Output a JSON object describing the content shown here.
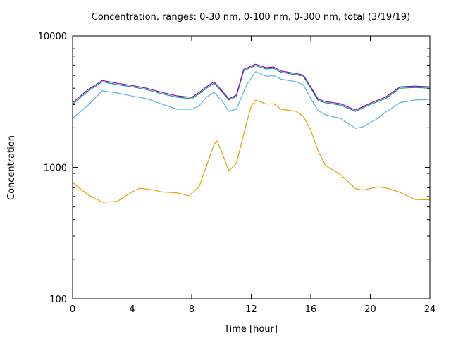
{
  "chart_data": {
    "type": "line",
    "title": "Concentration, ranges: 0-30 nm, 0-100 nm, 0-300 nm, total (3/19/19)",
    "xlabel": "Time [hour]",
    "ylabel": "Concentration",
    "xlim": [
      0,
      24
    ],
    "ylim": [
      100,
      10000
    ],
    "yscale": "log",
    "xticks": [
      0,
      4,
      8,
      12,
      16,
      20,
      24
    ],
    "xtick_labels": [
      "0",
      "4",
      "8",
      "12",
      "16",
      "20",
      "24"
    ],
    "yticks": [
      100,
      1000,
      10000
    ],
    "ytick_labels": [
      "100",
      "1000",
      "10000"
    ],
    "grid": false,
    "series": [
      {
        "name": "0-30 nm",
        "color": "#e69f00",
        "x": [
          0,
          1,
          2,
          3,
          4,
          4.5,
          5.5,
          6,
          7,
          7.8,
          8.5,
          9,
          9.5,
          9.7,
          10,
          10.5,
          11,
          11.5,
          12,
          12.3,
          13,
          13.5,
          14,
          15,
          15.5,
          16,
          16.5,
          17,
          18,
          19,
          19.5,
          20.5,
          21,
          22,
          23,
          24
        ],
        "y": [
          767,
          622,
          543,
          550,
          650,
          695,
          670,
          650,
          640,
          608,
          710,
          1030,
          1490,
          1590,
          1320,
          944,
          1070,
          1800,
          2930,
          3250,
          3030,
          3050,
          2770,
          2670,
          2450,
          1920,
          1320,
          1030,
          880,
          690,
          670,
          710,
          700,
          645,
          570,
          565
        ]
      },
      {
        "name": "0-100 nm",
        "color": "#56b4e9",
        "x": [
          0,
          1,
          2,
          3,
          4,
          5,
          6,
          7,
          8,
          8.5,
          9,
          9.5,
          10,
          10.5,
          11,
          11.7,
          12.3,
          13,
          13.5,
          14,
          15,
          15.5,
          16,
          16.5,
          17,
          18,
          19,
          19.5,
          20.5,
          21,
          22,
          23,
          24
        ],
        "y": [
          2360,
          2940,
          3820,
          3680,
          3490,
          3330,
          3030,
          2770,
          2770,
          2940,
          3420,
          3720,
          3250,
          2670,
          2770,
          4260,
          5350,
          4930,
          4990,
          4690,
          4480,
          4260,
          3330,
          2700,
          2510,
          2360,
          1980,
          2030,
          2360,
          2620,
          3110,
          3250,
          3290
        ]
      },
      {
        "name": "0-300 nm",
        "color": "#009e73",
        "x": [
          0,
          1,
          2,
          3,
          4,
          5,
          6,
          7,
          8,
          8.5,
          9,
          9.5,
          10,
          10.5,
          11,
          11.5,
          12.3,
          13,
          13.5,
          14,
          15,
          15.5,
          16,
          16.5,
          17,
          18,
          19,
          20,
          21,
          22,
          23,
          24
        ],
        "y": [
          3010,
          3780,
          4480,
          4260,
          4100,
          3900,
          3630,
          3420,
          3330,
          3630,
          4000,
          4370,
          3780,
          3250,
          3460,
          5450,
          5940,
          5600,
          5670,
          5280,
          5070,
          4930,
          4000,
          3220,
          3100,
          2980,
          2670,
          3010,
          3330,
          4000,
          4050,
          4000
        ]
      },
      {
        "name": "total",
        "color": "#9400d3",
        "x": [
          0,
          1,
          2,
          3,
          4,
          5,
          6,
          7,
          8,
          8.5,
          9,
          9.5,
          10,
          10.5,
          11,
          11.5,
          12.3,
          13,
          13.5,
          14,
          15,
          15.5,
          16,
          16.5,
          17,
          18,
          19,
          20,
          21,
          22,
          23,
          24
        ],
        "y": [
          3100,
          3880,
          4580,
          4360,
          4200,
          3990,
          3720,
          3500,
          3410,
          3720,
          4100,
          4480,
          3870,
          3320,
          3540,
          5580,
          6080,
          5730,
          5800,
          5400,
          5180,
          5040,
          4090,
          3300,
          3170,
          3050,
          2730,
          3080,
          3410,
          4100,
          4150,
          4100
        ]
      }
    ]
  }
}
